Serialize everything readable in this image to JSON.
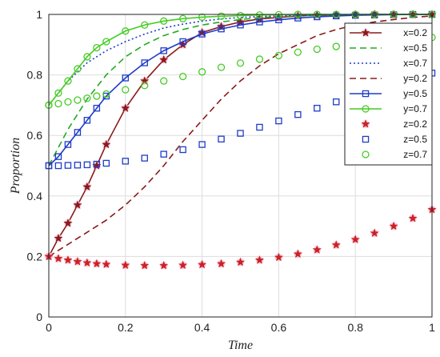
{
  "chart_data": {
    "type": "line",
    "xlabel": "Time",
    "ylabel": "Proportion",
    "xlim": [
      0,
      1
    ],
    "ylim": [
      0,
      1
    ],
    "xticks": [
      "0",
      "0.2",
      "0.4",
      "0.6",
      "0.8",
      "1"
    ],
    "yticks": [
      "0",
      "0.2",
      "0.4",
      "0.6",
      "0.8",
      "1"
    ],
    "grid": true,
    "legend_position": "top-right",
    "x": [
      0,
      0.025,
      0.05,
      0.075,
      0.1,
      0.125,
      0.15,
      0.2,
      0.25,
      0.3,
      0.35,
      0.4,
      0.45,
      0.5,
      0.55,
      0.6,
      0.65,
      0.7,
      0.75,
      0.8,
      0.85,
      0.9,
      0.95,
      1.0
    ],
    "series": [
      {
        "name": "x=0.2",
        "color": "#8b1a1a",
        "line": "solid",
        "marker": "star",
        "values": [
          0.2,
          0.26,
          0.31,
          0.37,
          0.43,
          0.5,
          0.57,
          0.69,
          0.78,
          0.85,
          0.9,
          0.94,
          0.96,
          0.975,
          0.985,
          0.99,
          0.995,
          0.997,
          0.998,
          0.999,
          1.0,
          1.0,
          1.0,
          1.0
        ]
      },
      {
        "name": "x=0.5",
        "color": "#22aa22",
        "line": "dashed",
        "marker": "none",
        "values": [
          0.5,
          0.56,
          0.62,
          0.67,
          0.72,
          0.76,
          0.8,
          0.86,
          0.9,
          0.93,
          0.95,
          0.965,
          0.975,
          0.983,
          0.989,
          0.993,
          0.995,
          0.997,
          0.998,
          0.999,
          1.0,
          1.0,
          1.0,
          1.0
        ]
      },
      {
        "name": "x=0.7",
        "color": "#1f3cc8",
        "line": "dotted",
        "marker": "none",
        "values": [
          0.7,
          0.74,
          0.78,
          0.81,
          0.84,
          0.86,
          0.88,
          0.91,
          0.935,
          0.955,
          0.968,
          0.978,
          0.985,
          0.99,
          0.993,
          0.995,
          0.997,
          0.998,
          0.999,
          1.0,
          1.0,
          1.0,
          1.0,
          1.0
        ]
      },
      {
        "name": "y=0.2",
        "color": "#8b1a1a",
        "line": "dashed",
        "marker": "none",
        "values": [
          0.2,
          0.22,
          0.24,
          0.26,
          0.28,
          0.3,
          0.32,
          0.37,
          0.43,
          0.5,
          0.58,
          0.65,
          0.72,
          0.78,
          0.83,
          0.87,
          0.9,
          0.93,
          0.95,
          0.965,
          0.975,
          0.983,
          0.99,
          0.995
        ]
      },
      {
        "name": "y=0.5",
        "color": "#1f3cc8",
        "line": "solid",
        "marker": "square",
        "values": [
          0.5,
          0.53,
          0.57,
          0.61,
          0.65,
          0.69,
          0.73,
          0.79,
          0.84,
          0.88,
          0.91,
          0.935,
          0.952,
          0.965,
          0.975,
          0.982,
          0.988,
          0.992,
          0.995,
          0.997,
          0.998,
          0.999,
          1.0,
          1.0
        ]
      },
      {
        "name": "y=0.7",
        "color": "#44cc22",
        "line": "solid",
        "marker": "circle",
        "values": [
          0.7,
          0.74,
          0.78,
          0.82,
          0.86,
          0.89,
          0.91,
          0.945,
          0.965,
          0.978,
          0.986,
          0.991,
          0.994,
          0.996,
          0.998,
          0.999,
          1.0,
          1.0,
          1.0,
          1.0,
          1.0,
          1.0,
          1.0,
          1.0
        ]
      },
      {
        "name": "z=0.2",
        "color": "#cc2222",
        "line": "none",
        "marker": "star",
        "values": [
          0.2,
          0.193,
          0.188,
          0.183,
          0.179,
          0.176,
          0.174,
          0.171,
          0.17,
          0.17,
          0.171,
          0.173,
          0.176,
          0.181,
          0.188,
          0.197,
          0.208,
          0.222,
          0.238,
          0.256,
          0.277,
          0.3,
          0.326,
          0.355
        ]
      },
      {
        "name": "z=0.5",
        "color": "#1f3cc8",
        "line": "none",
        "marker": "square",
        "values": [
          0.5,
          0.5,
          0.501,
          0.502,
          0.503,
          0.505,
          0.508,
          0.515,
          0.525,
          0.538,
          0.553,
          0.57,
          0.588,
          0.607,
          0.627,
          0.648,
          0.669,
          0.69,
          0.711,
          0.731,
          0.751,
          0.77,
          0.788,
          0.806
        ]
      },
      {
        "name": "z=0.7",
        "color": "#44cc22",
        "line": "none",
        "marker": "circle",
        "values": [
          0.7,
          0.705,
          0.711,
          0.717,
          0.723,
          0.73,
          0.737,
          0.751,
          0.765,
          0.78,
          0.795,
          0.81,
          0.825,
          0.839,
          0.852,
          0.864,
          0.875,
          0.885,
          0.894,
          0.902,
          0.909,
          0.915,
          0.92,
          0.924
        ]
      }
    ]
  }
}
